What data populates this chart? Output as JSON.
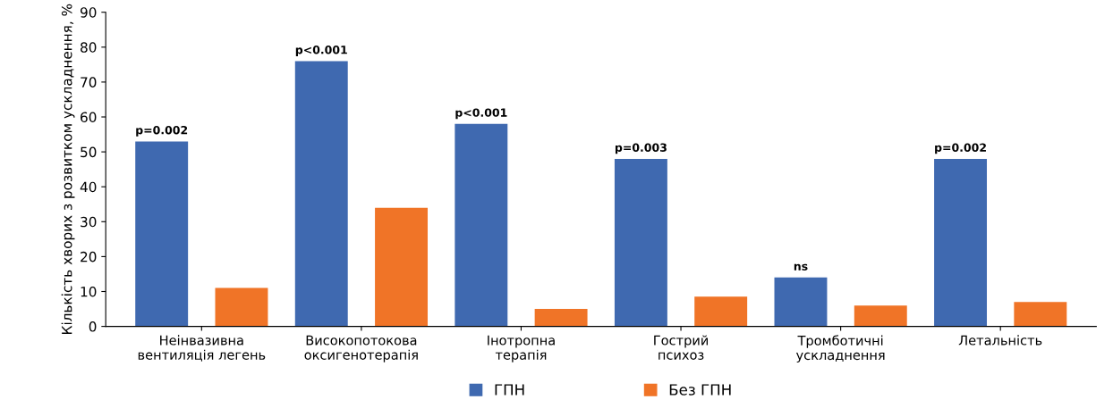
{
  "chart_data": {
    "type": "bar",
    "ylabel": "Кількість хворих з розвитком ускладнення, %",
    "categories": [
      "Неінвазивна\nвентиляція легень",
      "Високопотокова\nоксигенотерапія",
      "Інотропна\nтерапія",
      "Гострий\nпсихоз",
      "Тромботичні\nускладнення",
      "Летальність"
    ],
    "series": [
      {
        "name": "ГПН",
        "color": "#3f69b0",
        "values": [
          53,
          76,
          58,
          48,
          14,
          48
        ]
      },
      {
        "name": "Без ГПН",
        "color": "#f07427",
        "values": [
          11,
          34,
          5,
          8.5,
          6,
          7
        ]
      }
    ],
    "ylim": [
      0,
      90
    ],
    "yticks": [
      0,
      10,
      20,
      30,
      40,
      50,
      60,
      70,
      80,
      90
    ],
    "grid": false,
    "legend": "bottom",
    "annotations": [
      "p=0.002",
      "p<0.001",
      "p<0.001",
      "p=0.003",
      "ns",
      "p=0.002"
    ]
  }
}
